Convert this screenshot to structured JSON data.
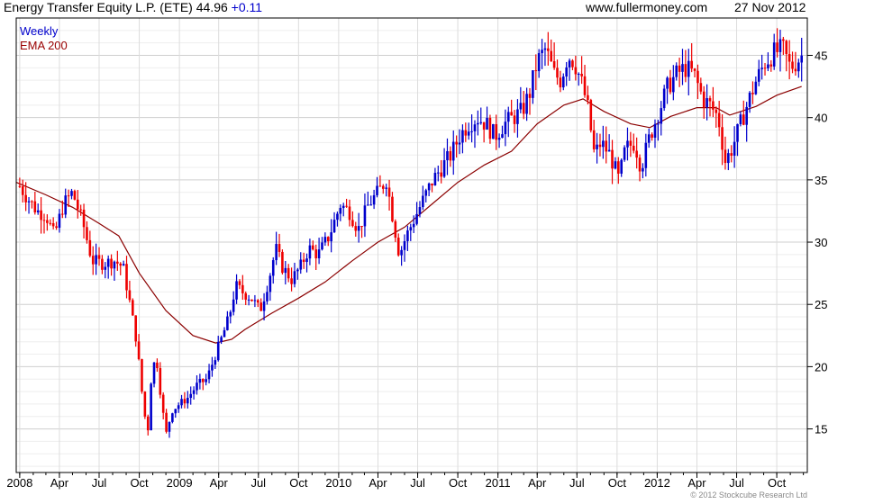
{
  "header": {
    "title": "Energy Transfer Equity L.P. (ETE)",
    "last_price": "44.96",
    "change": "+0.11",
    "site": "www.fullermoney.com",
    "date": "27 Nov 2012"
  },
  "legend": {
    "weekly_label": "Weekly",
    "ema_label": "EMA 200"
  },
  "copyright": "© 2012 Stockcube Research Ltd",
  "colors": {
    "up_bar": "#0000cc",
    "down_bar": "#ee0000",
    "ema_line": "#8b0000",
    "grid": "#dddddd",
    "axis": "#000000"
  },
  "chart_data": {
    "type": "ohlc-bar",
    "title": "Energy Transfer Equity L.P. (ETE)",
    "frequency": "Weekly",
    "ylim": [
      11.5,
      48
    ],
    "y_ticks": [
      15,
      20,
      25,
      30,
      35,
      40,
      45
    ],
    "y_axis_side": "right",
    "grid": true,
    "legend_position": "top-left",
    "x_tick_labels": [
      "2008",
      "Apr",
      "Jul",
      "Oct",
      "2009",
      "Apr",
      "Jul",
      "Oct",
      "2010",
      "Apr",
      "Jul",
      "Oct",
      "2011",
      "Apr",
      "Jul",
      "Oct",
      "2012",
      "Apr",
      "Jul",
      "Oct"
    ],
    "x_range": [
      "2007-12-24",
      "2012-12-10"
    ],
    "series": [
      {
        "name": "Weekly",
        "kind": "price",
        "approx_weekly_close_path": [
          [
            "2008-01-01",
            34.5
          ],
          [
            "2008-01-20",
            33.5
          ],
          [
            "2008-02-10",
            32.5
          ],
          [
            "2008-03-01",
            32.2
          ],
          [
            "2008-03-20",
            30.5
          ],
          [
            "2008-04-10",
            33
          ],
          [
            "2008-05-01",
            34
          ],
          [
            "2008-05-25",
            31.5
          ],
          [
            "2008-06-15",
            28.5
          ],
          [
            "2008-07-10",
            28.3
          ],
          [
            "2008-08-05",
            28.5
          ],
          [
            "2008-08-25",
            28
          ],
          [
            "2008-09-10",
            25
          ],
          [
            "2008-09-25",
            22
          ],
          [
            "2008-10-10",
            17
          ],
          [
            "2008-10-20",
            14.5
          ],
          [
            "2008-10-30",
            20
          ],
          [
            "2008-11-10",
            20.5
          ],
          [
            "2008-11-20",
            17.5
          ],
          [
            "2008-12-01",
            14.5
          ],
          [
            "2008-12-15",
            16.5
          ],
          [
            "2009-01-01",
            17
          ],
          [
            "2009-01-20",
            17.5
          ],
          [
            "2009-02-10",
            18.5
          ],
          [
            "2009-03-05",
            19
          ],
          [
            "2009-03-25",
            21
          ],
          [
            "2009-04-10",
            22.5
          ],
          [
            "2009-04-25",
            24
          ],
          [
            "2009-05-10",
            26.5
          ],
          [
            "2009-05-25",
            26
          ],
          [
            "2009-06-15",
            25.5
          ],
          [
            "2009-07-05",
            24.5
          ],
          [
            "2009-07-25",
            27
          ],
          [
            "2009-08-10",
            29.5
          ],
          [
            "2009-08-25",
            28
          ],
          [
            "2009-09-15",
            27
          ],
          [
            "2009-10-05",
            28
          ],
          [
            "2009-10-25",
            29.5
          ],
          [
            "2009-11-15",
            29
          ],
          [
            "2009-12-10",
            30.5
          ],
          [
            "2010-01-05",
            33
          ],
          [
            "2010-01-25",
            32.5
          ],
          [
            "2010-02-15",
            31
          ],
          [
            "2010-03-10",
            33
          ],
          [
            "2010-04-01",
            34
          ],
          [
            "2010-04-20",
            35
          ],
          [
            "2010-05-05",
            32
          ],
          [
            "2010-05-20",
            29
          ],
          [
            "2010-06-05",
            30.5
          ],
          [
            "2010-06-25",
            32
          ],
          [
            "2010-07-15",
            33.5
          ],
          [
            "2010-08-05",
            35
          ],
          [
            "2010-08-25",
            36
          ],
          [
            "2010-09-15",
            37
          ],
          [
            "2010-10-05",
            38.5
          ],
          [
            "2010-10-25",
            39.5
          ],
          [
            "2010-11-15",
            40
          ],
          [
            "2010-12-05",
            39.5
          ],
          [
            "2010-12-25",
            38.5
          ],
          [
            "2011-01-15",
            39.5
          ],
          [
            "2011-02-05",
            40
          ],
          [
            "2011-02-25",
            40.5
          ],
          [
            "2011-03-15",
            42
          ],
          [
            "2011-04-01",
            44.5
          ],
          [
            "2011-04-20",
            45.5
          ],
          [
            "2011-05-10",
            43.5
          ],
          [
            "2011-05-25",
            43
          ],
          [
            "2011-06-10",
            45
          ],
          [
            "2011-06-25",
            44.5
          ],
          [
            "2011-07-10",
            43
          ],
          [
            "2011-07-25",
            41
          ],
          [
            "2011-08-10",
            37
          ],
          [
            "2011-08-25",
            38
          ],
          [
            "2011-09-15",
            37
          ],
          [
            "2011-10-05",
            35
          ],
          [
            "2011-10-20",
            37.5
          ],
          [
            "2011-11-10",
            38
          ],
          [
            "2011-11-25",
            36
          ],
          [
            "2011-12-15",
            38.5
          ],
          [
            "2012-01-05",
            40.5
          ],
          [
            "2012-01-25",
            42.5
          ],
          [
            "2012-02-15",
            43.5
          ],
          [
            "2012-03-05",
            44
          ],
          [
            "2012-03-25",
            43.5
          ],
          [
            "2012-04-15",
            41.5
          ],
          [
            "2012-05-01",
            41
          ],
          [
            "2012-05-20",
            40
          ],
          [
            "2012-06-05",
            36.5
          ],
          [
            "2012-06-20",
            37.5
          ],
          [
            "2012-07-10",
            39.5
          ],
          [
            "2012-07-25",
            41
          ],
          [
            "2012-08-15",
            43
          ],
          [
            "2012-09-05",
            44.5
          ],
          [
            "2012-09-25",
            45.2
          ],
          [
            "2012-10-15",
            45.5
          ],
          [
            "2012-11-01",
            44
          ],
          [
            "2012-11-15",
            44.5
          ],
          [
            "2012-11-27",
            44.96
          ]
        ]
      },
      {
        "name": "EMA 200",
        "kind": "line",
        "points": [
          [
            "2007-12-24",
            34.8
          ],
          [
            "2008-03-01",
            33.8
          ],
          [
            "2008-05-01",
            32.8
          ],
          [
            "2008-07-01",
            31.5
          ],
          [
            "2008-08-15",
            30.5
          ],
          [
            "2008-10-01",
            27.5
          ],
          [
            "2008-12-01",
            24.5
          ],
          [
            "2009-02-01",
            22.5
          ],
          [
            "2009-03-25",
            21.9
          ],
          [
            "2009-05-01",
            22.2
          ],
          [
            "2009-06-01",
            23
          ],
          [
            "2009-08-01",
            24.3
          ],
          [
            "2009-10-01",
            25.5
          ],
          [
            "2009-12-01",
            26.8
          ],
          [
            "2010-02-01",
            28.5
          ],
          [
            "2010-04-01",
            30
          ],
          [
            "2010-06-01",
            31.2
          ],
          [
            "2010-08-01",
            33
          ],
          [
            "2010-10-01",
            34.8
          ],
          [
            "2010-12-01",
            36.2
          ],
          [
            "2011-02-01",
            37.3
          ],
          [
            "2011-04-01",
            39.5
          ],
          [
            "2011-06-01",
            41
          ],
          [
            "2011-07-15",
            41.5
          ],
          [
            "2011-09-01",
            40.5
          ],
          [
            "2011-11-01",
            39.5
          ],
          [
            "2011-12-15",
            39.2
          ],
          [
            "2012-02-01",
            40.1
          ],
          [
            "2012-04-01",
            40.8
          ],
          [
            "2012-05-15",
            40.8
          ],
          [
            "2012-06-15",
            40.2
          ],
          [
            "2012-08-15",
            40.9
          ],
          [
            "2012-10-01",
            41.8
          ],
          [
            "2012-11-27",
            42.5
          ]
        ]
      }
    ]
  }
}
